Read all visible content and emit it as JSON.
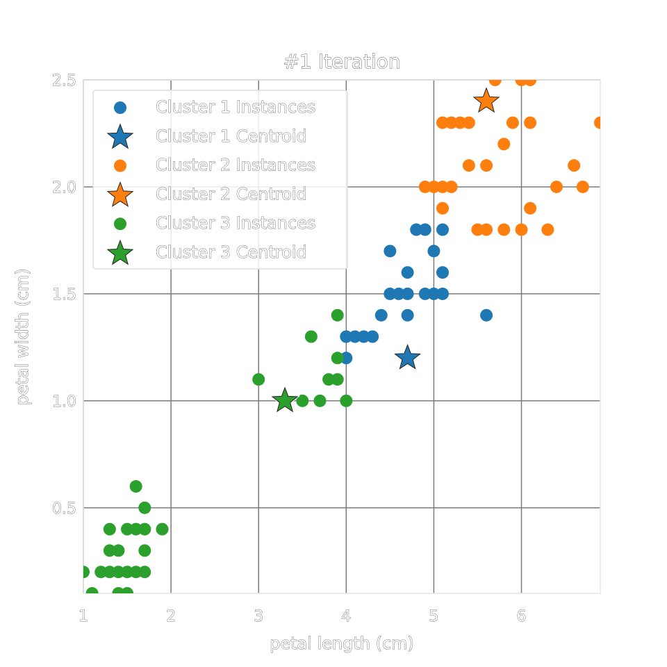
{
  "chart_data": {
    "type": "scatter",
    "title": "#1 Iteration",
    "xlabel": "petal length (cm)",
    "ylabel": "petal width (cm)",
    "xlim": [
      1.0,
      6.9
    ],
    "ylim": [
      0.1,
      2.5
    ],
    "xticks": [
      "1",
      "2",
      "3",
      "4",
      "5",
      "6"
    ],
    "yticks": [
      "0.5",
      "1.0",
      "1.5",
      "2.0",
      "2.5"
    ],
    "grid": true,
    "legend_position": "upper-left",
    "series": [
      {
        "name": "Cluster 1 Instances",
        "kind": "instances",
        "color": "#1f77b4",
        "points": [
          [
            4.0,
            1.2
          ],
          [
            4.0,
            1.3
          ],
          [
            4.1,
            1.3
          ],
          [
            4.2,
            1.3
          ],
          [
            4.3,
            1.3
          ],
          [
            4.4,
            1.4
          ],
          [
            4.5,
            1.5
          ],
          [
            4.5,
            1.7
          ],
          [
            4.6,
            1.5
          ],
          [
            4.7,
            1.5
          ],
          [
            4.7,
            1.4
          ],
          [
            4.7,
            1.6
          ],
          [
            4.8,
            1.8
          ],
          [
            4.9,
            1.8
          ],
          [
            4.9,
            1.5
          ],
          [
            5.0,
            1.5
          ],
          [
            5.0,
            1.7
          ],
          [
            5.1,
            1.8
          ],
          [
            5.1,
            1.6
          ],
          [
            5.1,
            1.5
          ],
          [
            5.6,
            1.4
          ]
        ]
      },
      {
        "name": "Cluster 1 Centroid",
        "kind": "centroid",
        "color": "#1f77b4",
        "points": [
          [
            4.7,
            1.2
          ]
        ]
      },
      {
        "name": "Cluster 2 Instances",
        "kind": "instances",
        "color": "#ff7f0e",
        "points": [
          [
            4.9,
            2.0
          ],
          [
            5.0,
            2.0
          ],
          [
            5.1,
            2.0
          ],
          [
            5.2,
            2.0
          ],
          [
            5.1,
            1.9
          ],
          [
            5.1,
            2.3
          ],
          [
            5.2,
            2.3
          ],
          [
            5.3,
            2.3
          ],
          [
            5.4,
            2.3
          ],
          [
            5.4,
            2.1
          ],
          [
            5.5,
            1.8
          ],
          [
            5.6,
            1.8
          ],
          [
            5.6,
            2.1
          ],
          [
            5.7,
            2.5
          ],
          [
            5.8,
            2.2
          ],
          [
            5.8,
            1.8
          ],
          [
            5.9,
            2.3
          ],
          [
            6.0,
            2.5
          ],
          [
            6.0,
            1.8
          ],
          [
            6.1,
            2.5
          ],
          [
            6.1,
            2.3
          ],
          [
            6.1,
            1.9
          ],
          [
            6.3,
            1.8
          ],
          [
            6.4,
            2.0
          ],
          [
            6.6,
            2.1
          ],
          [
            6.7,
            2.0
          ],
          [
            6.9,
            2.3
          ]
        ]
      },
      {
        "name": "Cluster 2 Centroid",
        "kind": "centroid",
        "color": "#ff7f0e",
        "points": [
          [
            5.6,
            2.4
          ]
        ]
      },
      {
        "name": "Cluster 3 Instances",
        "kind": "instances",
        "color": "#2ca02c",
        "points": [
          [
            3.0,
            1.1
          ],
          [
            3.5,
            1.0
          ],
          [
            3.6,
            1.3
          ],
          [
            3.7,
            1.0
          ],
          [
            3.8,
            1.1
          ],
          [
            3.9,
            1.1
          ],
          [
            3.9,
            1.2
          ],
          [
            3.9,
            1.4
          ],
          [
            4.0,
            1.0
          ],
          [
            1.0,
            0.2
          ],
          [
            1.1,
            0.1
          ],
          [
            1.2,
            0.2
          ],
          [
            1.3,
            0.2
          ],
          [
            1.3,
            0.3
          ],
          [
            1.3,
            0.4
          ],
          [
            1.4,
            0.1
          ],
          [
            1.4,
            0.2
          ],
          [
            1.4,
            0.3
          ],
          [
            1.5,
            0.1
          ],
          [
            1.5,
            0.2
          ],
          [
            1.5,
            0.4
          ],
          [
            1.6,
            0.2
          ],
          [
            1.6,
            0.4
          ],
          [
            1.6,
            0.6
          ],
          [
            1.7,
            0.2
          ],
          [
            1.7,
            0.3
          ],
          [
            1.7,
            0.4
          ],
          [
            1.7,
            0.5
          ],
          [
            1.9,
            0.4
          ]
        ]
      },
      {
        "name": "Cluster 3 Centroid",
        "kind": "centroid",
        "color": "#2ca02c",
        "points": [
          [
            3.3,
            1.0
          ]
        ]
      }
    ]
  }
}
